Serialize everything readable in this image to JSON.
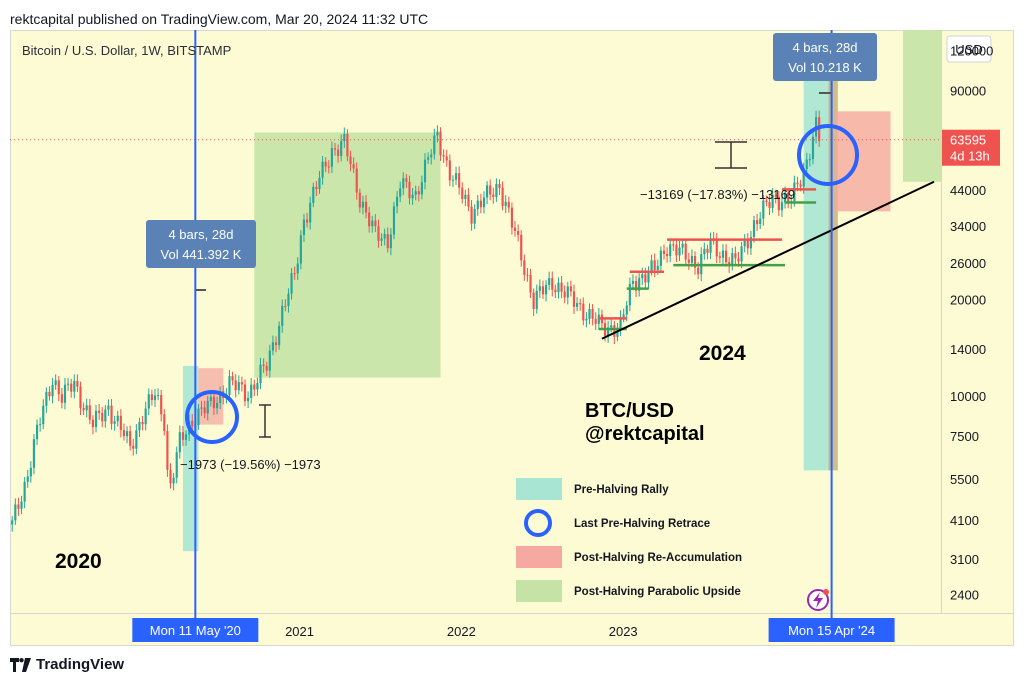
{
  "header": {
    "published": "rektcapital published on TradingView.com, Mar 20, 2024 11:32 UTC"
  },
  "symbol_info": "Bitcoin / U.S. Dollar, 1W, BITSTAMP",
  "currency": "USD",
  "footer": {
    "brand": "TradingView"
  },
  "colors": {
    "background": "#fdfbd3",
    "up_candle": "#26a69a",
    "down_candle": "#ef5350",
    "halving_line": "#2962ff",
    "pre_halving_rally": "#a8e6d3",
    "post_halving_reaccumulation": "#f5a9a0",
    "post_halving_parabolic": "#c5e3a6",
    "label_box": "#5a82b6"
  },
  "chart_data": {
    "type": "candlestick",
    "title": "Bitcoin / U.S. Dollar, 1W, BITSTAMP",
    "scale": "log",
    "ylim": [
      2100,
      140000
    ],
    "xlim": [
      "2019-03-20",
      "2024-12-20"
    ],
    "y_ticks": [
      120000,
      90000,
      60000,
      44000,
      34000,
      26000,
      20000,
      14000,
      10000,
      7500,
      5500,
      4100,
      3100,
      2400
    ],
    "x_ticks": [
      "2021",
      "2022",
      "2023"
    ],
    "price_path": [
      [
        "2019-03-25",
        4000
      ],
      [
        "2019-04-22",
        5300
      ],
      [
        "2019-05-20",
        7800
      ],
      [
        "2019-06-24",
        11500
      ],
      [
        "2019-07-15",
        10000
      ],
      [
        "2019-08-12",
        11000
      ],
      [
        "2019-09-23",
        8200
      ],
      [
        "2019-10-28",
        9300
      ],
      [
        "2019-12-16",
        7000
      ],
      [
        "2020-01-13",
        8800
      ],
      [
        "2020-02-10",
        10200
      ],
      [
        "2020-03-02",
        8500
      ],
      [
        "2020-03-12",
        5000
      ],
      [
        "2020-04-06",
        7200
      ],
      [
        "2020-05-11",
        8800
      ],
      [
        "2020-06-15",
        9400
      ],
      [
        "2020-07-27",
        11000
      ],
      [
        "2020-09-07",
        10300
      ],
      [
        "2020-10-19",
        12500
      ],
      [
        "2020-11-23",
        18500
      ],
      [
        "2020-12-21",
        24000
      ],
      [
        "2021-01-11",
        36000
      ],
      [
        "2021-02-15",
        48000
      ],
      [
        "2021-03-15",
        59000
      ],
      [
        "2021-04-12",
        62000
      ],
      [
        "2021-05-17",
        42000
      ],
      [
        "2021-06-21",
        32000
      ],
      [
        "2021-07-19",
        31000
      ],
      [
        "2021-08-16",
        46000
      ],
      [
        "2021-09-20",
        43000
      ],
      [
        "2021-11-08",
        66000
      ],
      [
        "2021-12-06",
        50000
      ],
      [
        "2022-01-24",
        38000
      ],
      [
        "2022-03-28",
        46000
      ],
      [
        "2022-05-09",
        30000
      ],
      [
        "2022-06-13",
        20000
      ],
      [
        "2022-07-25",
        23000
      ],
      [
        "2022-09-19",
        19500
      ],
      [
        "2022-11-14",
        16500
      ],
      [
        "2022-12-26",
        16600
      ],
      [
        "2023-01-23",
        23000
      ],
      [
        "2023-03-13",
        25000
      ],
      [
        "2023-04-10",
        30000
      ],
      [
        "2023-06-19",
        26000
      ],
      [
        "2023-07-17",
        30000
      ],
      [
        "2023-09-11",
        26000
      ],
      [
        "2023-10-23",
        34500
      ],
      [
        "2023-12-04",
        42000
      ],
      [
        "2024-01-15",
        41000
      ],
      [
        "2024-02-12",
        51000
      ],
      [
        "2024-03-11",
        70000
      ],
      [
        "2024-03-18",
        63595
      ]
    ],
    "halving_lines": [
      "2020-05-11",
      "2024-04-15"
    ],
    "halving_labels": [
      "Mon 11 May '20",
      "Mon 15 Apr '24"
    ],
    "last_price": {
      "value": "63595",
      "countdown": "4d 13h"
    },
    "measure_boxes": [
      {
        "line1": "4 bars, 28d",
        "line2": "Vol 441.392 K"
      },
      {
        "line1": "4 bars, 28d",
        "line2": "Vol 10.218 K"
      }
    ],
    "retrace_labels": [
      "−1973 (−19.56%) −1973",
      "−13169 (−17.83%) −13169"
    ],
    "annotations": {
      "year_left": "2020",
      "year_right": "2024",
      "handle_1": "BTC/USD",
      "handle_2": "@rektcapital"
    },
    "legend": [
      {
        "label": "Pre-Halving Rally",
        "kind": "teal"
      },
      {
        "label": "Last Pre-Halving Retrace",
        "kind": "circle"
      },
      {
        "label": "Post-Halving Re-Accumulation",
        "kind": "red"
      },
      {
        "label": "Post-Halving Parabolic Upside",
        "kind": "green"
      }
    ]
  }
}
